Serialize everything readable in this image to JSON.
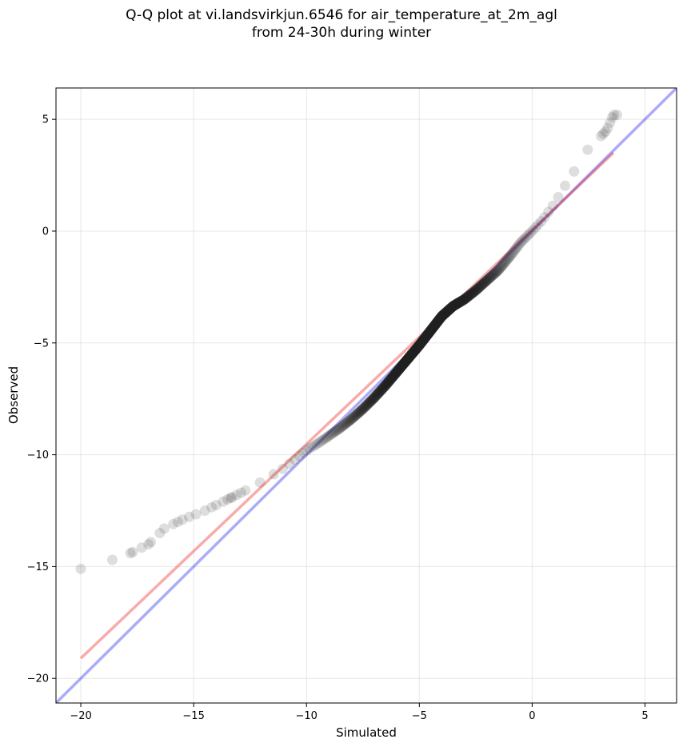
{
  "chart_data": {
    "type": "scatter",
    "title": "Q-Q plot at vi.landsvirkjun.6546 for air_temperature_at_2m_agl",
    "subtitle": "from 24-30h during winter",
    "xlabel": "Simulated",
    "ylabel": "Observed",
    "xlim": [
      -21.1,
      6.4
    ],
    "ylim": [
      -21.1,
      6.4
    ],
    "xticks": [
      -20,
      -15,
      -10,
      -5,
      0,
      5
    ],
    "yticks": [
      -20,
      -15,
      -10,
      -5,
      0,
      5
    ],
    "xtick_labels": [
      "−20",
      "−15",
      "−10",
      "−5",
      "0",
      "5"
    ],
    "ytick_labels": [
      "−20",
      "−15",
      "−10",
      "−5",
      "0",
      "5"
    ],
    "grid": true,
    "legend": "none",
    "colors": {
      "points": "#222222",
      "identity_line": "#aaaaee",
      "fit_line": "#f2a7aa",
      "overlap": "#6a2f8a"
    },
    "identity_line": {
      "x": [
        -21.1,
        6.4
      ],
      "y": [
        -21.1,
        6.4
      ]
    },
    "fit_line": {
      "x": [
        -20.0,
        3.6
      ],
      "y": [
        -19.1,
        3.5
      ]
    },
    "quantile_anchors": {
      "x": [
        -20.0,
        -18.6,
        -17.8,
        -17.0,
        -16.3,
        -15.5,
        -14.5,
        -13.5,
        -12.5,
        -11.5,
        -11.0,
        -10.5,
        -10.0,
        -9.5,
        -9.0,
        -8.5,
        -8.0,
        -7.5,
        -7.0,
        -6.5,
        -6.0,
        -5.5,
        -5.0,
        -4.5,
        -4.0,
        -3.5,
        -3.0,
        -2.5,
        -2.0,
        -1.5,
        -1.0,
        -0.5,
        0.0,
        0.5,
        1.0,
        1.5,
        2.0,
        2.5,
        3.0,
        3.3,
        3.6
      ],
      "y": [
        -15.1,
        -14.7,
        -14.4,
        -14.0,
        -13.3,
        -12.9,
        -12.5,
        -12.0,
        -11.5,
        -10.9,
        -10.6,
        -10.2,
        -9.8,
        -9.5,
        -9.15,
        -8.8,
        -8.4,
        -7.95,
        -7.45,
        -6.9,
        -6.3,
        -5.7,
        -5.1,
        -4.45,
        -3.8,
        -3.35,
        -3.05,
        -2.65,
        -2.2,
        -1.75,
        -1.15,
        -0.5,
        0.0,
        0.55,
        1.25,
        2.1,
        2.9,
        3.7,
        4.2,
        4.5,
        5.2
      ]
    },
    "n_points": 700
  }
}
